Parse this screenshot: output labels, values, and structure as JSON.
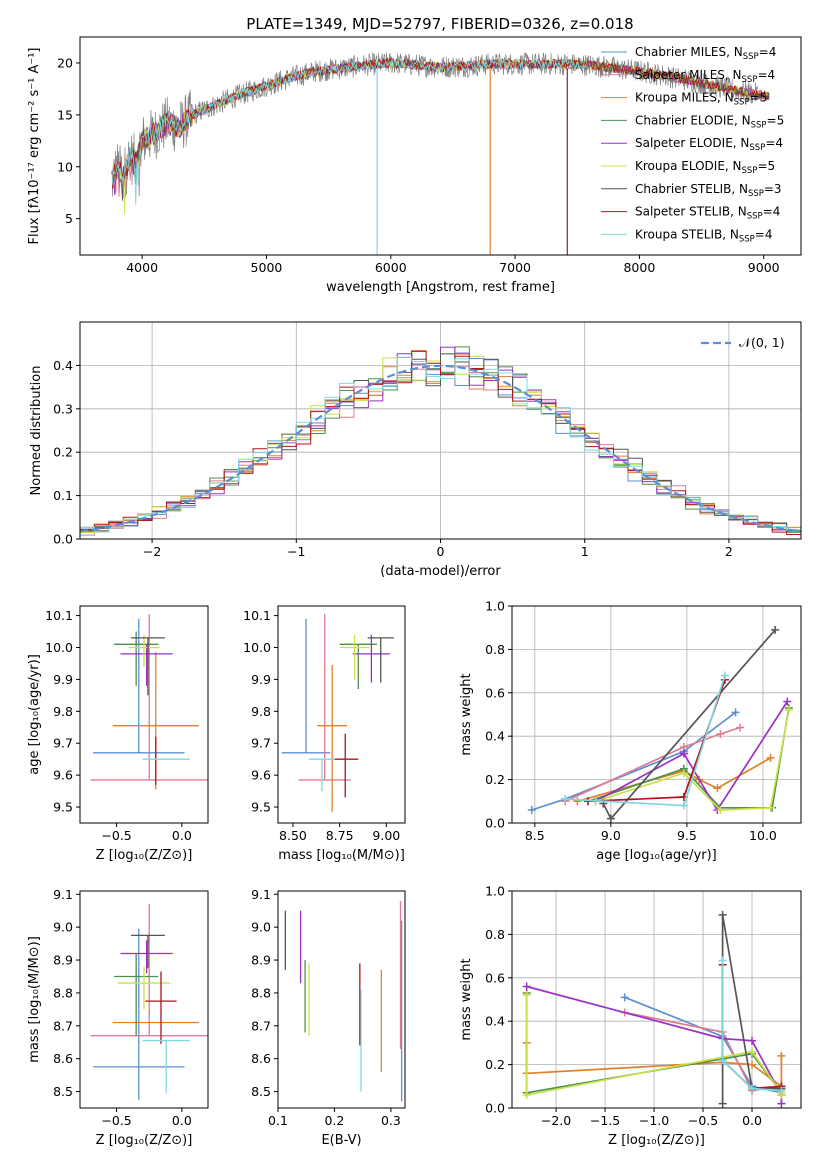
{
  "title": "PLATE=1349, MJD=52797, FIBERID=0326, z=0.018",
  "colors": {
    "Chabrier MILES": "#5b8fd4",
    "Salpeter MILES": "#e07b91",
    "Kroupa MILES": "#e1812c",
    "Chabrier ELODIE": "#4d8f4d",
    "Salpeter ELODIE": "#9b30c6",
    "Kroupa ELODIE": "#c9e04a",
    "Chabrier STELIB": "#555555",
    "Salpeter STELIB": "#b0141c",
    "Kroupa STELIB": "#7fd8e0",
    "Kroupa STELIB spectrum": "#7fd8e0",
    "data": "#808080"
  },
  "chart_data": [
    {
      "type": "line",
      "name": "spectrum",
      "xlabel": "wavelength [Angstrom, rest frame]",
      "ylabel": "Flux [fλ10⁻¹⁷ erg cm⁻² s⁻¹ A⁻¹]",
      "xlim": [
        3500,
        9300
      ],
      "ylim": [
        1.5,
        22.5
      ],
      "xticks": [
        "4000",
        "5000",
        "6000",
        "7000",
        "8000",
        "9000"
      ],
      "yticks": [
        "5",
        "10",
        "15",
        "20"
      ],
      "legend_placement": "upper right",
      "legend": [
        {
          "label": "Chabrier MILES, N",
          "sub": "SSP",
          "suffix": "=4",
          "color_key": "Chabrier MILES"
        },
        {
          "label": "Salpeter MILES, N",
          "sub": "SSP",
          "suffix": "=4",
          "color_key": "Salpeter MILES"
        },
        {
          "label": "Kroupa MILES, N",
          "sub": "SSP",
          "suffix": "=5",
          "color_key": "Kroupa MILES"
        },
        {
          "label": "Chabrier ELODIE, N",
          "sub": "SSP",
          "suffix": "=5",
          "color_key": "Chabrier ELODIE"
        },
        {
          "label": "Salpeter ELODIE, N",
          "sub": "SSP",
          "suffix": "=4",
          "color_key": "Salpeter ELODIE"
        },
        {
          "label": "Kroupa ELODIE, N",
          "sub": "SSP",
          "suffix": "=5",
          "color_key": "Kroupa ELODIE"
        },
        {
          "label": "Chabrier STELIB, N",
          "sub": "SSP",
          "suffix": "=3",
          "color_key": "Chabrier STELIB"
        },
        {
          "label": "Salpeter STELIB, N",
          "sub": "SSP",
          "suffix": "=4",
          "color_key": "Salpeter STELIB"
        },
        {
          "label": "Kroupa STELIB, N",
          "sub": "SSP",
          "suffix": "=4",
          "color_key": "Kroupa STELIB"
        }
      ],
      "continuum": {
        "x": [
          3750,
          3800,
          3850,
          3900,
          3950,
          4000,
          4100,
          4200,
          4300,
          4400,
          4600,
          4800,
          5000,
          5200,
          5400,
          5600,
          5800,
          6000,
          6200,
          6400,
          6600,
          6800,
          7000,
          7200,
          7400,
          7600,
          7800,
          8000,
          8200,
          8400,
          8600,
          8800,
          9000,
          9050
        ],
        "y": [
          8.5,
          10,
          9,
          11,
          10.5,
          12.5,
          13.2,
          14.2,
          13.8,
          15,
          16,
          17,
          17.8,
          18.6,
          19.2,
          19.5,
          19.8,
          20,
          19.8,
          19.6,
          19.7,
          19.9,
          19.9,
          19.9,
          19.9,
          19.8,
          19.5,
          19.2,
          18.8,
          18.3,
          17.8,
          17.3,
          16.9,
          16.8
        ]
      },
      "dropouts": [
        {
          "x": 5890,
          "color_key": "Kroupa STELIB"
        },
        {
          "x": 6800,
          "color_key": "Kroupa MILES"
        },
        {
          "x": 7420,
          "color_key": "Salpeter STELIB"
        }
      ]
    },
    {
      "type": "histogram",
      "name": "residuals",
      "xlabel": "(data-model)/error",
      "ylabel": "Normed distribution",
      "xlim": [
        -2.5,
        2.5
      ],
      "ylim": [
        0,
        0.5
      ],
      "xticks": [
        "−2",
        "−1",
        "0",
        "1",
        "2"
      ],
      "yticks": [
        "0.0",
        "0.1",
        "0.2",
        "0.3",
        "0.4"
      ],
      "grid": true,
      "legend": "𝒩(0, 1)",
      "legend_placement": "upper right",
      "bin_width": 0.1,
      "curve": {
        "mean": 0,
        "sigma": 1,
        "color": "#5b8fd4"
      }
    },
    {
      "type": "errorbar",
      "name": "age-vs-metallicity",
      "xlabel": "Z [log₁₀(Z/Z⊙)]",
      "ylabel": "age  [log₁₀(age/yr)]",
      "xlim": [
        -0.78,
        0.2
      ],
      "ylim": [
        9.45,
        10.13
      ],
      "xticks": [
        "−0.5",
        "0.0"
      ],
      "yticks": [
        "9.5",
        "9.6",
        "9.7",
        "9.8",
        "9.9",
        "10.0",
        "10.1"
      ],
      "points": [
        {
          "key": "Chabrier MILES",
          "x": -0.33,
          "y": 9.67,
          "xerr": 0.35,
          "yerr": [
            0.0,
            0.42
          ]
        },
        {
          "key": "Salpeter MILES",
          "x": -0.25,
          "y": 9.585,
          "xerr": 0.45,
          "yerr": [
            0.0,
            0.52
          ]
        },
        {
          "key": "Kroupa MILES",
          "x": -0.2,
          "y": 9.755,
          "xerr": 0.33,
          "yerr": [
            0.2,
            0.23
          ]
        },
        {
          "key": "Chabrier ELODIE",
          "x": -0.35,
          "y": 10.01,
          "xerr": 0.17,
          "yerr": [
            0.13,
            0.04
          ]
        },
        {
          "key": "Salpeter ELODIE",
          "x": -0.27,
          "y": 9.98,
          "xerr": 0.2,
          "yerr": [
            0.1,
            0.03
          ]
        },
        {
          "key": "Kroupa ELODIE",
          "x": -0.29,
          "y": 10.0,
          "xerr": 0.12,
          "yerr": [
            0.06,
            0.04
          ]
        },
        {
          "key": "Chabrier STELIB",
          "x": -0.26,
          "y": 10.03,
          "xerr": 0.13,
          "yerr": [
            0.18,
            0.0
          ]
        },
        {
          "key": "Salpeter STELIB",
          "x": -0.2,
          "y": 9.65,
          "xerr": 0.0,
          "yerr": [
            0.08,
            0.07
          ]
        },
        {
          "key": "Kroupa STELIB",
          "x": -0.12,
          "y": 9.65,
          "xerr": 0.18,
          "yerr": [
            0.0,
            0.0
          ]
        }
      ]
    },
    {
      "type": "errorbar",
      "name": "age-vs-mass",
      "xlabel": "mass [log₁₀(M/M⊙)]",
      "ylabel": "",
      "xlim": [
        8.42,
        9.1
      ],
      "ylim": [
        9.45,
        10.13
      ],
      "xticks": [
        "8.50",
        "8.75",
        "9.00"
      ],
      "yticks": [
        "9.5",
        "9.6",
        "9.7",
        "9.8",
        "9.9",
        "10.0",
        "10.1"
      ],
      "points": [
        {
          "key": "Chabrier MILES",
          "x": 8.57,
          "y": 9.67,
          "xerr": 0.13,
          "yerr": [
            0.0,
            0.42
          ]
        },
        {
          "key": "Salpeter MILES",
          "x": 8.67,
          "y": 9.585,
          "xerr": 0.14,
          "yerr": [
            0.0,
            0.52
          ]
        },
        {
          "key": "Kroupa MILES",
          "x": 8.71,
          "y": 9.755,
          "xerr": 0.08,
          "yerr": [
            0.27,
            0.19
          ]
        },
        {
          "key": "Chabrier ELODIE",
          "x": 8.85,
          "y": 10.01,
          "xerr": 0.1,
          "yerr": [
            0.14,
            0.0
          ]
        },
        {
          "key": "Salpeter ELODIE",
          "x": 8.92,
          "y": 9.98,
          "xerr": 0.1,
          "yerr": [
            0.09,
            0.06
          ]
        },
        {
          "key": "Kroupa ELODIE",
          "x": 8.83,
          "y": 10.0,
          "xerr": 0.08,
          "yerr": [
            0.1,
            0.04
          ]
        },
        {
          "key": "Chabrier STELIB",
          "x": 8.97,
          "y": 10.03,
          "xerr": 0.07,
          "yerr": [
            0.14,
            0.0
          ]
        },
        {
          "key": "Salpeter STELIB",
          "x": 8.78,
          "y": 9.65,
          "xerr": 0.07,
          "yerr": [
            0.12,
            0.08
          ]
        },
        {
          "key": "Kroupa STELIB",
          "x": 8.655,
          "y": 9.65,
          "xerr": 0.07,
          "yerr": [
            0.1,
            0.0
          ]
        }
      ]
    },
    {
      "type": "line",
      "name": "mass-weight-vs-age",
      "xlabel": "age  [log₁₀(age/yr)]",
      "ylabel": "mass weight",
      "xlim": [
        8.35,
        10.25
      ],
      "ylim": [
        0,
        1
      ],
      "xticks": [
        "8.5",
        "9.0",
        "9.5",
        "10.0"
      ],
      "yticks": [
        "0.0",
        "0.2",
        "0.4",
        "0.6",
        "0.8",
        "1.0"
      ],
      "grid": true,
      "series": [
        {
          "key": "Chabrier MILES",
          "x": [
            8.48,
            8.7,
            9.48,
            9.82
          ],
          "y": [
            0.06,
            0.11,
            0.33,
            0.51
          ]
        },
        {
          "key": "Salpeter MILES",
          "x": [
            8.7,
            9.48,
            9.72,
            9.85
          ],
          "y": [
            0.1,
            0.35,
            0.41,
            0.44
          ]
        },
        {
          "key": "Kroupa MILES",
          "x": [
            8.78,
            9.48,
            9.58,
            9.7,
            10.05
          ],
          "y": [
            0.1,
            0.24,
            0.2,
            0.16,
            0.3
          ]
        },
        {
          "key": "Chabrier ELODIE",
          "x": [
            8.85,
            9.48,
            9.72,
            10.06,
            10.17
          ],
          "y": [
            0.1,
            0.25,
            0.07,
            0.07,
            0.53
          ]
        },
        {
          "key": "Salpeter ELODIE",
          "x": [
            8.9,
            9.48,
            9.7,
            10.16
          ],
          "y": [
            0.1,
            0.32,
            0.06,
            0.56
          ]
        },
        {
          "key": "Kroupa ELODIE",
          "x": [
            8.9,
            9.48,
            9.72,
            10.05,
            10.17
          ],
          "y": [
            0.1,
            0.23,
            0.06,
            0.07,
            0.52
          ]
        },
        {
          "key": "Chabrier STELIB",
          "x": [
            8.95,
            9.0,
            10.08
          ],
          "y": [
            0.09,
            0.02,
            0.89
          ]
        },
        {
          "key": "Salpeter STELIB",
          "x": [
            8.85,
            9.48,
            9.75
          ],
          "y": [
            0.1,
            0.12,
            0.66
          ]
        },
        {
          "key": "Kroupa STELIB",
          "x": [
            8.7,
            9.48,
            9.75
          ],
          "y": [
            0.11,
            0.08,
            0.68
          ]
        }
      ]
    },
    {
      "type": "errorbar",
      "name": "mass-vs-metallicity",
      "xlabel": "Z [log₁₀(Z/Z⊙)]",
      "ylabel": "mass [log₁₀(M/M⊙)]",
      "xlim": [
        -0.78,
        0.2
      ],
      "ylim": [
        8.45,
        9.11
      ],
      "xticks": [
        "−0.5",
        "0.0"
      ],
      "yticks": [
        "8.5",
        "8.6",
        "8.7",
        "8.8",
        "8.9",
        "9.0",
        "9.1"
      ],
      "points": [
        {
          "key": "Chabrier MILES",
          "x": -0.33,
          "y": 8.575,
          "xerr": 0.35,
          "yerr": [
            0.1,
            0.42
          ]
        },
        {
          "key": "Salpeter MILES",
          "x": -0.25,
          "y": 8.67,
          "xerr": 0.45,
          "yerr": [
            0.0,
            0.4
          ]
        },
        {
          "key": "Kroupa MILES",
          "x": -0.2,
          "y": 8.71,
          "xerr": 0.33,
          "yerr": [
            0.0,
            0.0
          ]
        },
        {
          "key": "Chabrier ELODIE",
          "x": -0.35,
          "y": 8.85,
          "xerr": 0.17,
          "yerr": [
            0.18,
            0.07
          ]
        },
        {
          "key": "Salpeter ELODIE",
          "x": -0.27,
          "y": 8.92,
          "xerr": 0.2,
          "yerr": [
            0.06,
            0.04
          ]
        },
        {
          "key": "Kroupa ELODIE",
          "x": -0.29,
          "y": 8.83,
          "xerr": 0.2,
          "yerr": [
            0.08,
            0.05
          ]
        },
        {
          "key": "Chabrier STELIB",
          "x": -0.26,
          "y": 8.975,
          "xerr": 0.13,
          "yerr": [
            0.1,
            0.0
          ]
        },
        {
          "key": "Salpeter STELIB",
          "x": -0.16,
          "y": 8.775,
          "xerr": 0.12,
          "yerr": [
            0.13,
            0.09
          ]
        },
        {
          "key": "Kroupa STELIB",
          "x": -0.12,
          "y": 8.655,
          "xerr": 0.18,
          "yerr": [
            0.16,
            0.0
          ]
        }
      ]
    },
    {
      "type": "errorbar",
      "name": "mass-vs-extinction",
      "xlabel": "E(B-V)",
      "ylabel": "",
      "xlim": [
        0.1,
        0.325
      ],
      "ylim": [
        8.45,
        9.11
      ],
      "xticks": [
        "0.1",
        "0.2",
        "0.3"
      ],
      "yticks": [
        "8.5",
        "8.6",
        "8.7",
        "8.8",
        "8.9",
        "9.0",
        "9.1"
      ],
      "points": [
        {
          "key": "Chabrier STELIB",
          "x": 0.113,
          "y": 8.96,
          "xerr": 0.0,
          "yerr": [
            0.09,
            0.09
          ]
        },
        {
          "key": "Salpeter ELODIE",
          "x": 0.14,
          "y": 8.94,
          "xerr": 0.0,
          "yerr": [
            0.11,
            0.11
          ]
        },
        {
          "key": "Chabrier ELODIE",
          "x": 0.148,
          "y": 8.79,
          "xerr": 0.0,
          "yerr": [
            0.11,
            0.11
          ]
        },
        {
          "key": "Kroupa ELODIE",
          "x": 0.155,
          "y": 8.83,
          "xerr": 0.0,
          "yerr": [
            0.16,
            0.06
          ]
        },
        {
          "key": "Salpeter STELIB",
          "x": 0.245,
          "y": 8.77,
          "xerr": 0.0,
          "yerr": [
            0.13,
            0.12
          ]
        },
        {
          "key": "Kroupa STELIB",
          "x": 0.247,
          "y": 8.65,
          "xerr": 0.0,
          "yerr": [
            0.15,
            0.16
          ]
        },
        {
          "key": "Kroupa MILES",
          "x": 0.283,
          "y": 8.71,
          "xerr": 0.0,
          "yerr": [
            0.15,
            0.16
          ]
        },
        {
          "key": "Salpeter MILES",
          "x": 0.317,
          "y": 8.83,
          "xerr": 0.0,
          "yerr": [
            0.2,
            0.25
          ]
        },
        {
          "key": "Chabrier MILES",
          "x": 0.319,
          "y": 8.74,
          "xerr": 0.0,
          "yerr": [
            0.27,
            0.28
          ]
        }
      ]
    },
    {
      "type": "line",
      "name": "mass-weight-vs-metallicity",
      "xlabel": "Z [log₁₀(Z/Z⊙)]",
      "ylabel": "mass weight",
      "xlim": [
        -2.45,
        0.5
      ],
      "ylim": [
        0,
        1
      ],
      "xticks": [
        "−2.0",
        "−1.5",
        "−1.0",
        "−0.5",
        "0.0"
      ],
      "yticks": [
        "0.0",
        "0.2",
        "0.4",
        "0.6",
        "0.8",
        "1.0"
      ],
      "grid": true,
      "series": [
        {
          "key": "Chabrier MILES",
          "x": [
            -1.3,
            -0.3,
            0.0,
            0.3
          ],
          "y": [
            0.51,
            0.33,
            0.1,
            0.07
          ]
        },
        {
          "key": "Salpeter MILES",
          "x": [
            -1.3,
            -0.3,
            0.0,
            0.3
          ],
          "y": [
            0.44,
            0.35,
            0.08,
            0.1
          ]
        },
        {
          "key": "Kroupa MILES",
          "x": [
            -2.3,
            -2.3,
            -0.3,
            0.0,
            0.3,
            0.3
          ],
          "y": [
            0.3,
            0.16,
            0.21,
            0.2,
            0.1,
            0.24
          ]
        },
        {
          "key": "Chabrier ELODIE",
          "x": [
            -2.3,
            -2.3,
            0.0,
            0.3,
            0.3
          ],
          "y": [
            0.53,
            0.07,
            0.25,
            0.07,
            0.09
          ]
        },
        {
          "key": "Salpeter ELODIE",
          "x": [
            -2.3,
            -0.3,
            0.0,
            0.3,
            0.3
          ],
          "y": [
            0.56,
            0.32,
            0.31,
            0.06,
            0.02
          ]
        },
        {
          "key": "Kroupa ELODIE",
          "x": [
            -2.3,
            -2.3,
            0.0,
            0.3,
            0.3
          ],
          "y": [
            0.52,
            0.06,
            0.26,
            0.07,
            0.06
          ]
        },
        {
          "key": "Chabrier STELIB",
          "x": [
            -0.3,
            -0.3,
            0.0,
            0.3
          ],
          "y": [
            0.02,
            0.89,
            0.09,
            0.09
          ]
        },
        {
          "key": "Salpeter STELIB",
          "x": [
            -0.3,
            -0.3,
            0.0,
            0.3
          ],
          "y": [
            0.66,
            0.22,
            0.09,
            0.1
          ]
        },
        {
          "key": "Kroupa STELIB",
          "x": [
            -0.3,
            -0.3,
            0.0,
            0.3
          ],
          "y": [
            0.68,
            0.22,
            0.09,
            0.08
          ]
        }
      ]
    }
  ]
}
